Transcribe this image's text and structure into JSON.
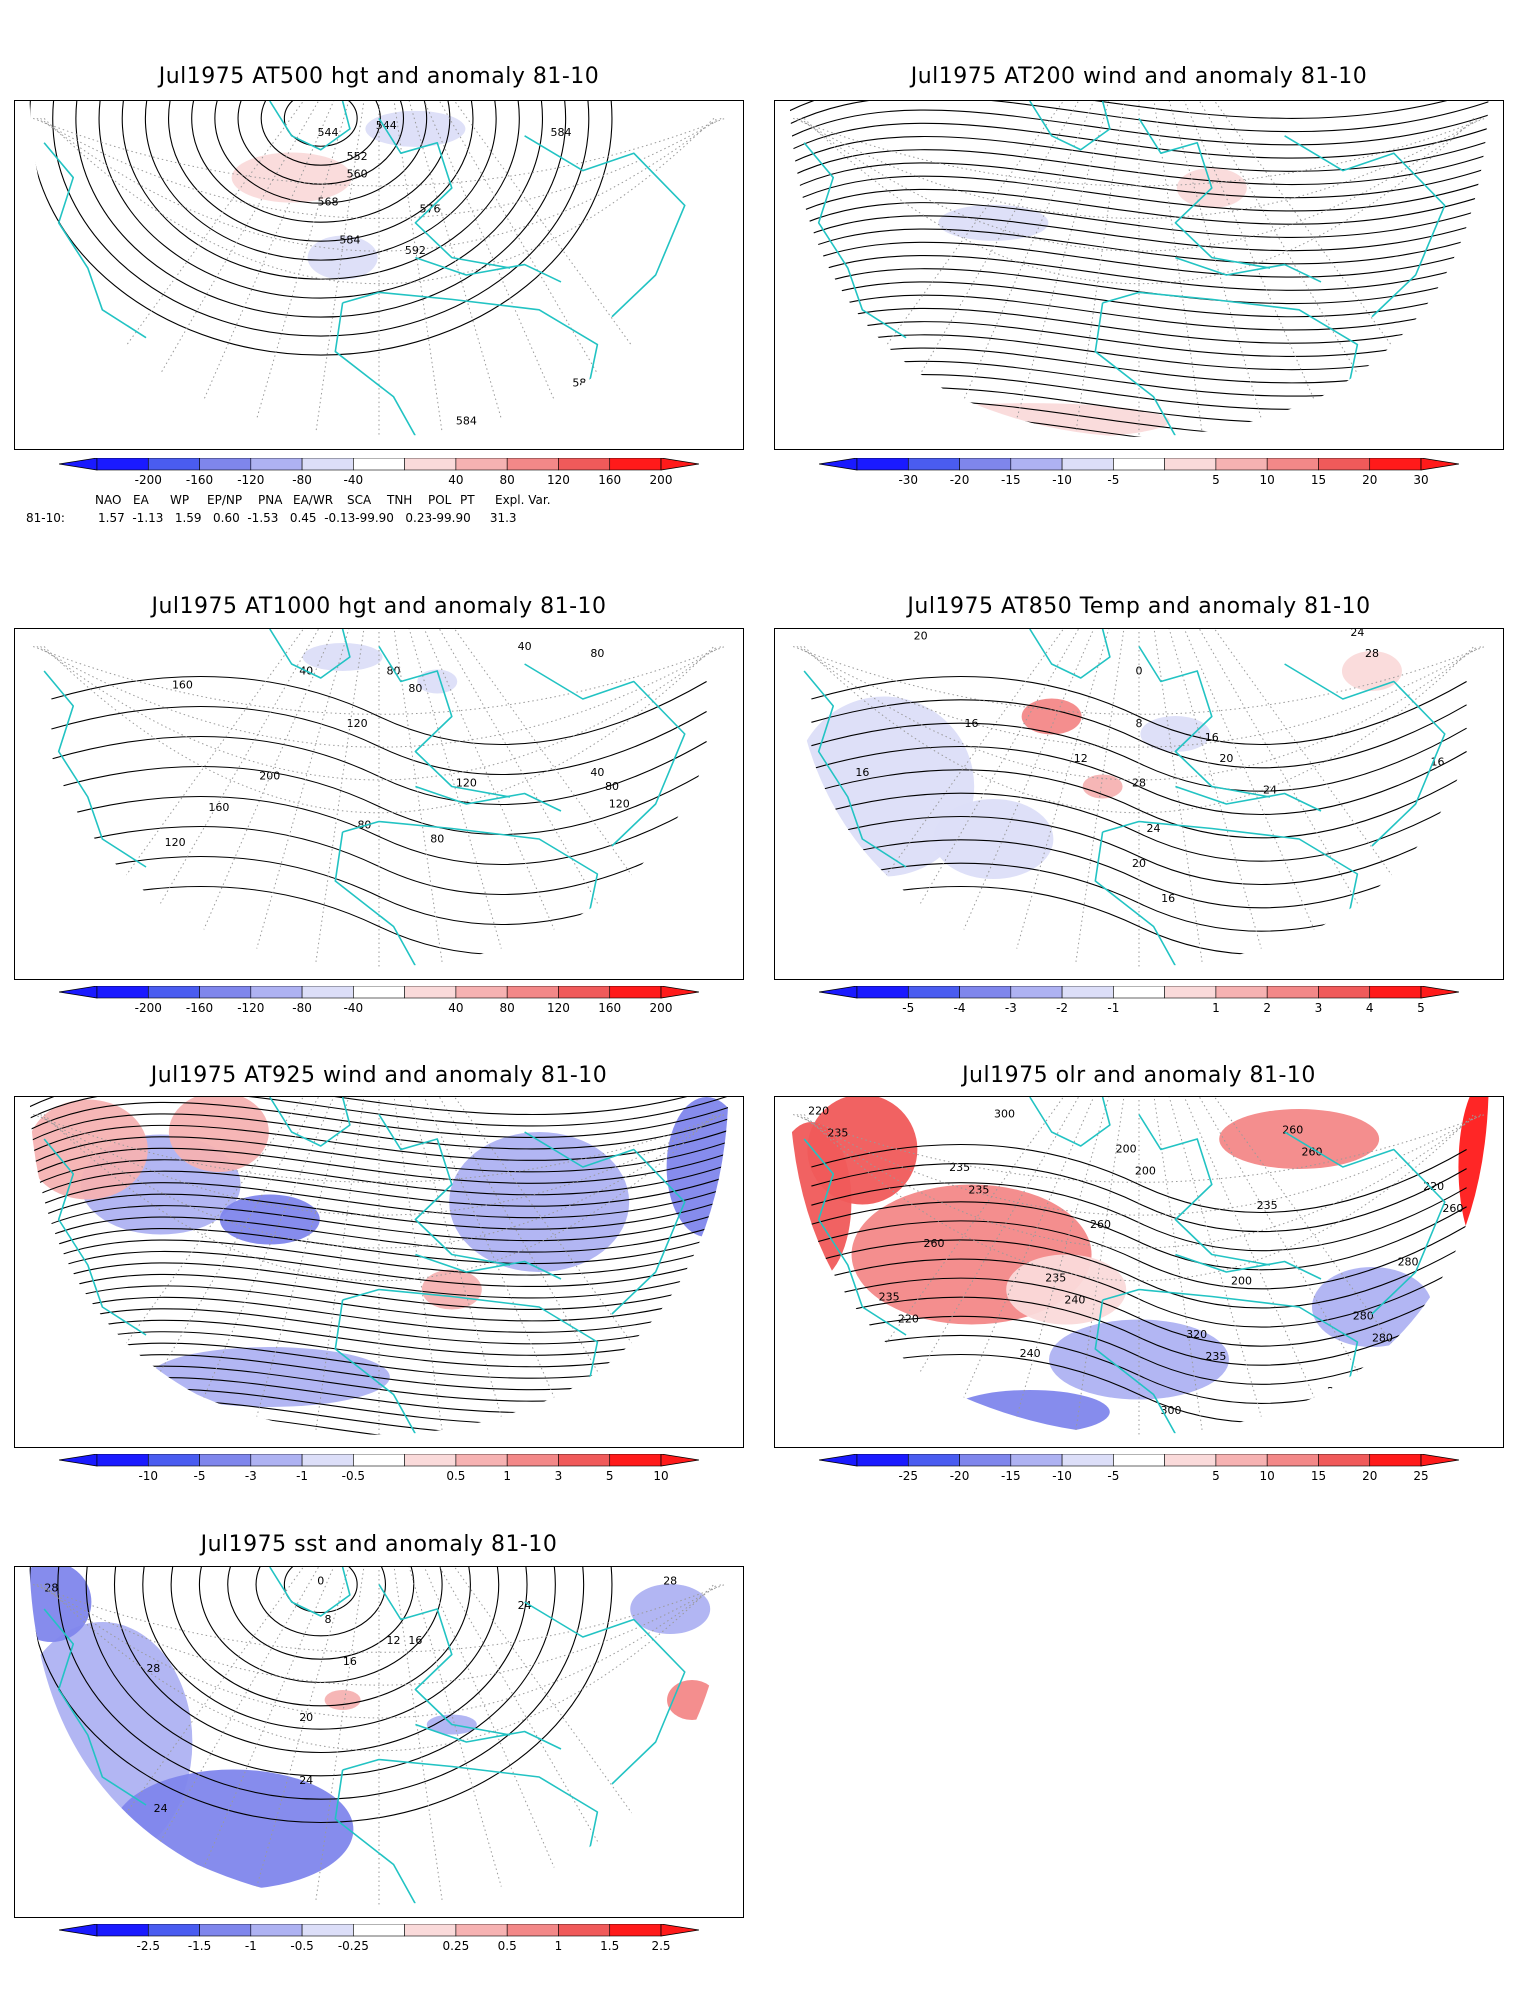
{
  "panels": [
    {
      "id": "p1",
      "title": "Jul1975 AT500 hgt and anomaly 81-10",
      "field_type": "height",
      "colorbar": {
        "ticks": [
          "-200",
          "-160",
          "-120",
          "-80",
          "-40",
          "40",
          "80",
          "120",
          "160",
          "200"
        ]
      },
      "contour_labels": [
        "544",
        "544",
        "552",
        "560",
        "568",
        "576",
        "584",
        "592",
        "584",
        "584",
        "584",
        "584"
      ]
    },
    {
      "id": "p2",
      "title": "Jul1975 AT200 wind and anomaly 81-10",
      "field_type": "streamlines",
      "colorbar": {
        "ticks": [
          "-30",
          "-20",
          "-15",
          "-10",
          "-5",
          "5",
          "10",
          "15",
          "20",
          "30"
        ]
      },
      "contour_labels": []
    },
    {
      "id": "p3",
      "title": "Jul1975 AT1000 hgt and anomaly 81-10",
      "field_type": "height",
      "colorbar": {
        "ticks": [
          "-200",
          "-160",
          "-120",
          "-80",
          "-40",
          "40",
          "80",
          "120",
          "160",
          "200"
        ]
      },
      "contour_labels": [
        "40",
        "40",
        "80",
        "80",
        "80",
        "160",
        "120",
        "200",
        "160",
        "120",
        "120",
        "80",
        "80",
        "40",
        "80",
        "120",
        "120"
      ]
    },
    {
      "id": "p4",
      "title": "Jul1975 AT850 Temp and anomaly 81-10",
      "field_type": "temperature",
      "colorbar": {
        "ticks": [
          "-5",
          "-4",
          "-3",
          "-2",
          "-1",
          "1",
          "2",
          "3",
          "4",
          "5"
        ]
      },
      "contour_labels": [
        "20",
        "24",
        "28",
        "0",
        "16",
        "8",
        "16",
        "16",
        "12",
        "20",
        "28",
        "24",
        "24",
        "20",
        "16",
        "16"
      ]
    },
    {
      "id": "p5",
      "title": "Jul1975 AT925 wind and anomaly 81-10",
      "field_type": "streamlines",
      "colorbar": {
        "ticks": [
          "-10",
          "-5",
          "-3",
          "-1",
          "-0.5",
          "0.5",
          "1",
          "3",
          "5",
          "10"
        ]
      },
      "contour_labels": []
    },
    {
      "id": "p6",
      "title": "Jul1975 olr and anomaly 81-10",
      "field_type": "olr",
      "colorbar": {
        "ticks": [
          "-25",
          "-20",
          "-15",
          "-10",
          "-5",
          "5",
          "10",
          "15",
          "20",
          "25"
        ]
      },
      "contour_labels": [
        "220",
        "235",
        "260",
        "235",
        "200",
        "280",
        "235",
        "320",
        "220",
        "240",
        "235",
        "240",
        "260",
        "280",
        "260",
        "300",
        "280",
        "300",
        "200",
        "235",
        "240",
        "260",
        "220",
        "200",
        "280",
        "235",
        "235",
        "260"
      ]
    },
    {
      "id": "p7",
      "title": "Jul1975 sst and anomaly 81-10",
      "field_type": "sst",
      "colorbar": {
        "ticks": [
          "-2.5",
          "-1.5",
          "-1",
          "-0.5",
          "-0.25",
          "0.25",
          "0.5",
          "1",
          "1.5",
          "2.5"
        ]
      },
      "contour_labels": [
        "28",
        "24",
        "28",
        "0",
        "8",
        "12",
        "16",
        "20",
        "24",
        "24",
        "28",
        "24",
        "16"
      ]
    }
  ],
  "teleconnections": {
    "header": [
      "NAO",
      "EA",
      "WP",
      "EP/NP",
      "PNA",
      "EA/WR",
      "SCA",
      "TNH",
      "POL",
      "PT",
      "Expl. Var."
    ],
    "row_label": "81-10:",
    "values_text": "1.57  -1.13   1.59   0.60  -1.53   0.45  -0.13-99.90   0.23-99.90     31.3"
  },
  "colors": {
    "coast": "#22c3c3",
    "contour": "#000000",
    "neg": [
      "#1a1aff",
      "#4a5cf0",
      "#7f86ec",
      "#aeb2f2",
      "#dcdef8"
    ],
    "pos": [
      "#fadada",
      "#f6b2b2",
      "#f38888",
      "#f05a5a",
      "#ff1a1a"
    ],
    "grid": "#9a9a9a"
  }
}
